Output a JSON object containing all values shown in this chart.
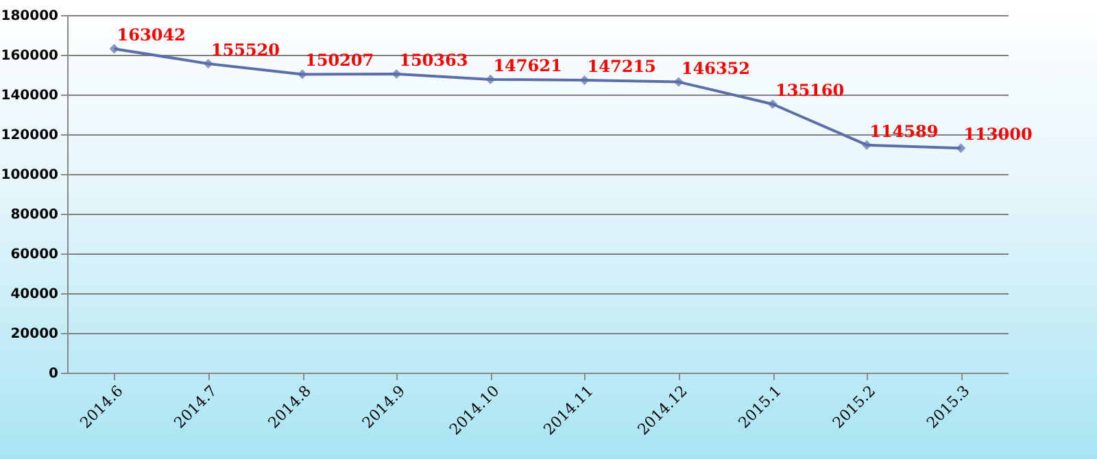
{
  "chart_data": {
    "type": "line",
    "categories": [
      "2014.6",
      "2014.7",
      "2014.8",
      "2014.9",
      "2014.10",
      "2014.11",
      "2014.12",
      "2015.1",
      "2015.2",
      "2015.3"
    ],
    "series": [
      {
        "color": "#5b6ea8",
        "values": [
          163042,
          155520,
          150207,
          150363,
          147621,
          147215,
          146352,
          135160,
          114589,
          113000
        ]
      }
    ],
    "ylim": [
      0,
      180000
    ],
    "yticks": [
      0,
      20000,
      40000,
      60000,
      80000,
      100000,
      120000,
      140000,
      160000,
      180000
    ],
    "grid": "y",
    "marker": "diamond",
    "data_labels": true
  }
}
